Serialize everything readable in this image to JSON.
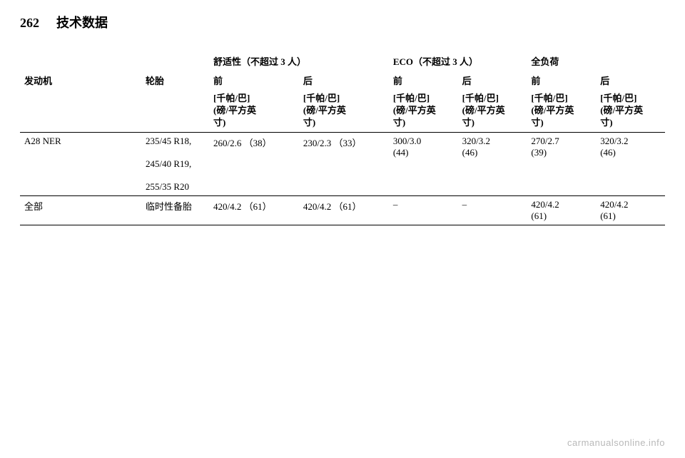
{
  "page": {
    "number": "262",
    "title": "技术数据"
  },
  "table": {
    "load_groups": {
      "comfort": "舒适性（不超过 3 人）",
      "eco": "ECO（不超过 3 人）",
      "full": "全负荷"
    },
    "col_labels": {
      "engine": "发动机",
      "tires": "轮胎",
      "front": "前",
      "rear": "后",
      "unit": "[千帕/巴]\n(磅/平方英\n寸)"
    },
    "rows": [
      {
        "engine": "A28 NER",
        "tires": [
          "235/45 R18,",
          "245/40 R19,",
          "255/35 R20"
        ],
        "vals": [
          "260/2.6 （38）",
          "230/2.3 （33）",
          "300/3.0\n(44)",
          "320/3.2\n(46)",
          "270/2.7\n(39)",
          "320/3.2\n(46)"
        ]
      },
      {
        "engine": "全部",
        "tires": [
          "临时性备胎"
        ],
        "vals": [
          "420/4.2 （61）",
          "420/4.2 （61）",
          "–",
          "–",
          "420/4.2\n(61)",
          "420/4.2\n(61)"
        ]
      }
    ]
  },
  "footer": "carmanualsonline.info"
}
